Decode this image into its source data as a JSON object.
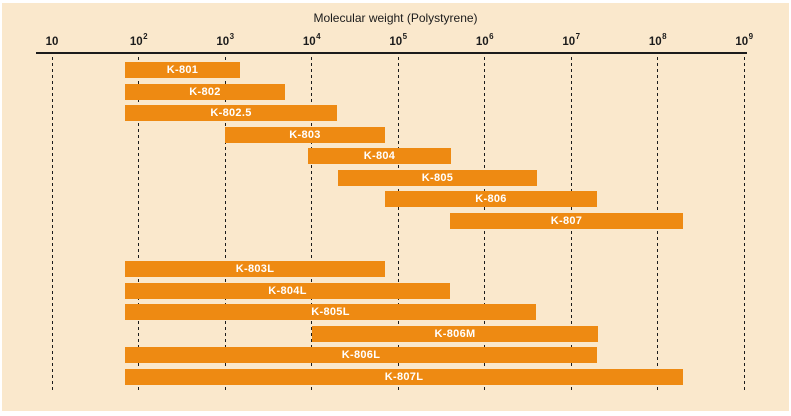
{
  "chart_data": {
    "type": "bar",
    "orientation": "horizontal",
    "title": "Molecular weight (Polystyrene)",
    "x_scale": "log10",
    "xlim": [
      10,
      1000000000
    ],
    "grid": "dotted-vertical",
    "legend": "none",
    "x_ticks": [
      {
        "value": 10,
        "base": "10",
        "exp": ""
      },
      {
        "value": 100,
        "base": "10",
        "exp": "2"
      },
      {
        "value": 1000,
        "base": "10",
        "exp": "3"
      },
      {
        "value": 10000,
        "base": "10",
        "exp": "4"
      },
      {
        "value": 100000,
        "base": "10",
        "exp": "5"
      },
      {
        "value": 1000000,
        "base": "10",
        "exp": "6"
      },
      {
        "value": 10000000,
        "base": "10",
        "exp": "7"
      },
      {
        "value": 100000000,
        "base": "10",
        "exp": "8"
      },
      {
        "value": 1000000000,
        "base": "10",
        "exp": "9"
      }
    ],
    "bars": [
      {
        "label": "K-801",
        "min": 70,
        "max": 1500,
        "group": 1
      },
      {
        "label": "K-802",
        "min": 70,
        "max": 5000,
        "group": 1
      },
      {
        "label": "K-802.5",
        "min": 70,
        "max": 20000,
        "group": 1
      },
      {
        "label": "K-803",
        "min": 1000,
        "max": 70000,
        "group": 1
      },
      {
        "label": "K-804",
        "min": 9000,
        "max": 400000,
        "group": 1
      },
      {
        "label": "K-805",
        "min": 20000,
        "max": 4000000,
        "group": 1
      },
      {
        "label": "K-806",
        "min": 70000,
        "max": 20000000,
        "group": 1
      },
      {
        "label": "K-807",
        "min": 400000,
        "max": 200000000,
        "group": 1
      },
      {
        "label": "K-803L",
        "min": 70,
        "max": 70000,
        "group": 2
      },
      {
        "label": "K-804L",
        "min": 70,
        "max": 400000,
        "group": 2
      },
      {
        "label": "K-805L",
        "min": 70,
        "max": 4000000,
        "group": 2
      },
      {
        "label": "K-806M",
        "min": 10000,
        "max": 20000000,
        "group": 2
      },
      {
        "label": "K-806L",
        "min": 70,
        "max": 20000000,
        "group": 2
      },
      {
        "label": "K-807L",
        "min": 70,
        "max": 200000000,
        "group": 2
      }
    ],
    "colors": {
      "bar": "#EE8A12",
      "bar_label": "#FFFFFF",
      "background": "#FAE8CC",
      "axis": "#1B1B1B",
      "grid": "#1B1B1B",
      "text": "#1B1B1B"
    }
  }
}
